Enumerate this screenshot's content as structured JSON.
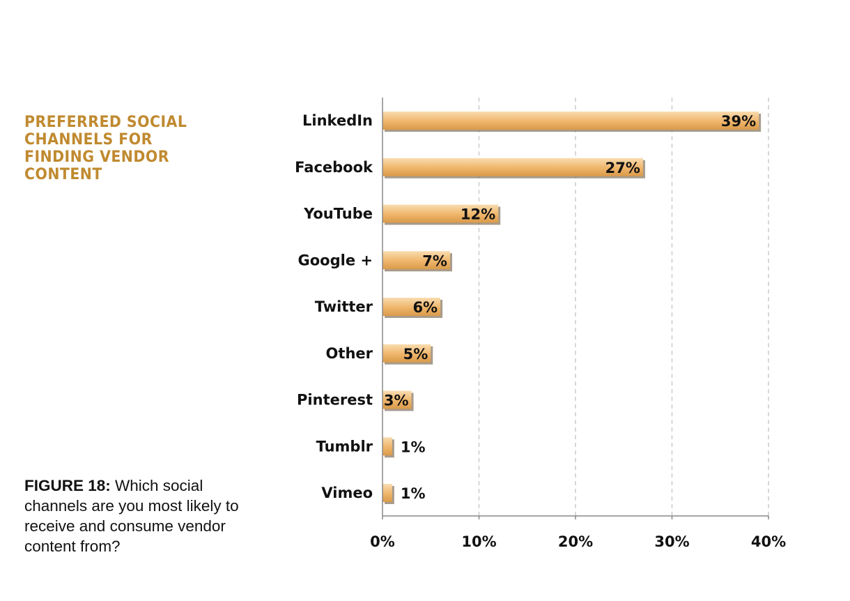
{
  "colors": {
    "heading": "#c08a30",
    "bar_light": "#f9dcb0",
    "bar_mid": "#efb56a",
    "bar_dark": "#d99a4a",
    "bar_shadow": "#8a7a66",
    "axis": "#888888",
    "grid": "#cccccc",
    "text": "#111111"
  },
  "heading": {
    "lines": [
      "PREFERRED SOCIAL",
      "CHANNELS FOR",
      "FINDING VENDOR",
      "CONTENT"
    ]
  },
  "caption": {
    "label": "FIGURE 18:",
    "text": " Which social channels are you most likely to receive and consume vendor content from?"
  },
  "chart_data": {
    "type": "bar",
    "orientation": "horizontal",
    "categories": [
      "LinkedIn",
      "Facebook",
      "YouTube",
      "Google +",
      "Twitter",
      "Other",
      "Pinterest",
      "Tumblr",
      "Vimeo"
    ],
    "values": [
      39,
      27,
      12,
      7,
      6,
      5,
      3,
      1,
      1
    ],
    "value_labels": [
      "39%",
      "27%",
      "12%",
      "7%",
      "6%",
      "5%",
      "3%",
      "1%",
      "1%"
    ],
    "xlim": [
      0,
      40
    ],
    "xticks": [
      0,
      10,
      20,
      30,
      40
    ],
    "xtick_labels": [
      "0%",
      "10%",
      "20%",
      "30%",
      "40%"
    ],
    "grid": "vertical dashed"
  }
}
